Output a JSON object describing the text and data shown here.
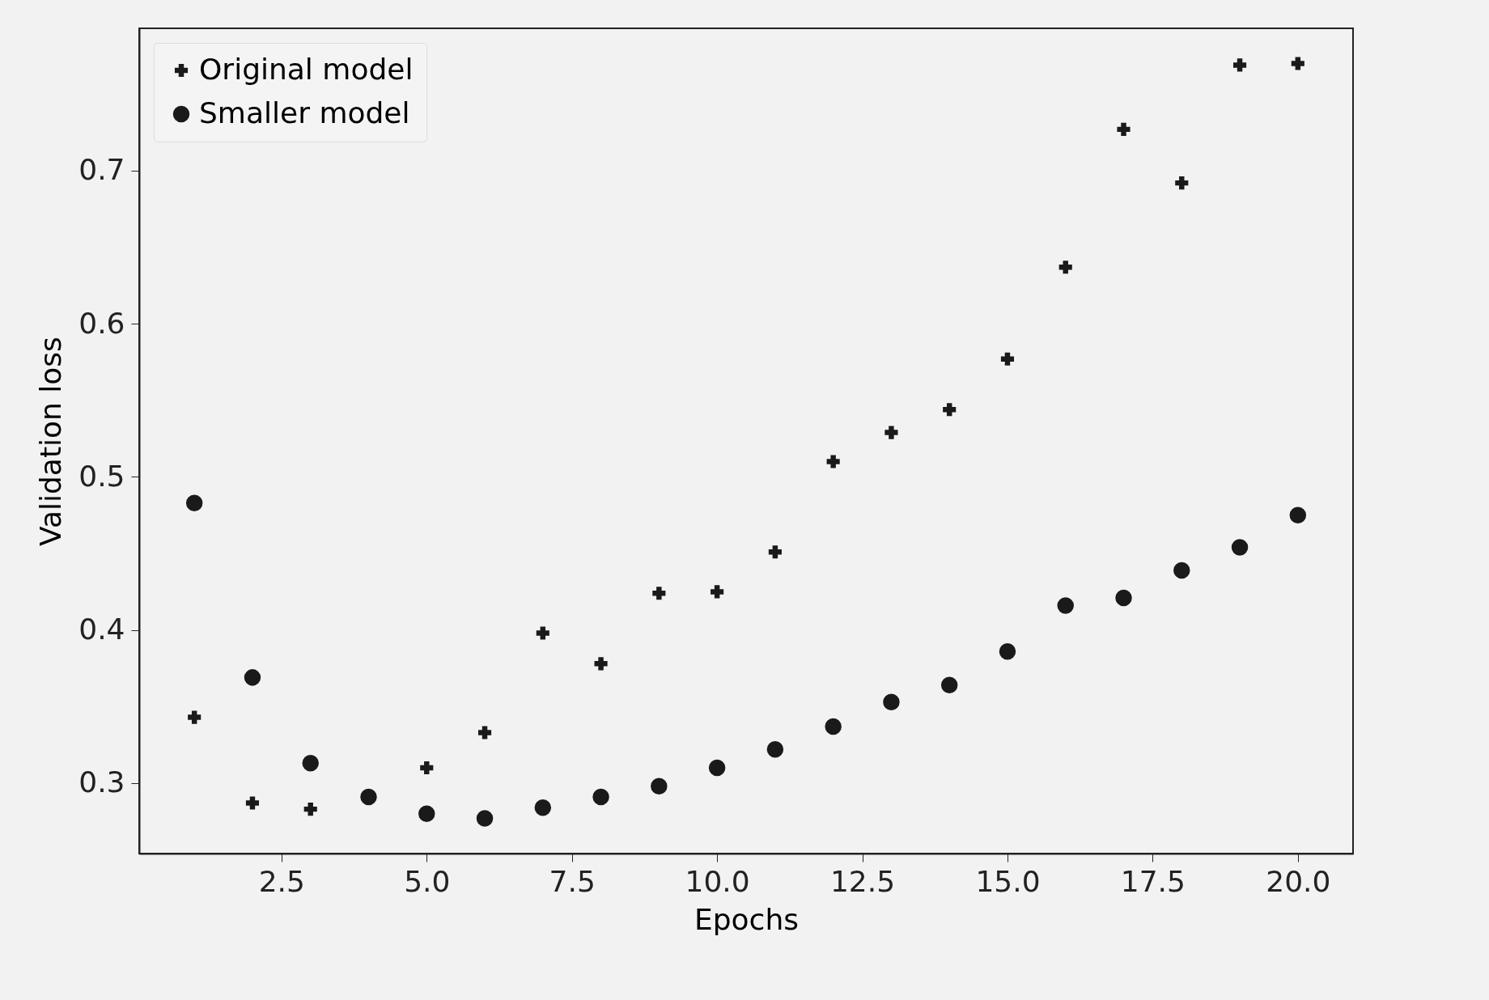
{
  "chart_data": {
    "type": "scatter",
    "xlabel": "Epochs",
    "ylabel": "Validation loss",
    "x": [
      1,
      2,
      3,
      4,
      5,
      6,
      7,
      8,
      9,
      10,
      11,
      12,
      13,
      14,
      15,
      16,
      17,
      18,
      19,
      20
    ],
    "series": [
      {
        "name": "Original model",
        "color": "#1a1a1a",
        "marker": "cross",
        "values": [
          0.343,
          0.287,
          0.283,
          null,
          0.31,
          0.333,
          0.398,
          0.378,
          0.424,
          0.425,
          0.451,
          0.51,
          0.529,
          0.544,
          0.577,
          0.637,
          0.727,
          0.692,
          0.769,
          0.77
        ]
      },
      {
        "name": "Smaller model",
        "color": "#1a1a1a",
        "marker": "circle",
        "values": [
          0.483,
          0.369,
          0.313,
          0.291,
          0.28,
          0.277,
          0.284,
          0.291,
          0.298,
          0.31,
          0.322,
          0.337,
          0.353,
          0.364,
          0.386,
          0.416,
          0.421,
          0.439,
          0.454,
          0.475
        ]
      }
    ],
    "xlim": [
      0.05,
      20.95
    ],
    "ylim": [
      0.254,
      0.793
    ],
    "xticks": [
      2.5,
      {
        "value": 5,
        "label": "5.0"
      },
      7.5,
      {
        "value": 10,
        "label": "10.0"
      },
      12.5,
      {
        "value": 15,
        "label": "15.0"
      },
      17.5,
      {
        "value": 20,
        "label": "20.0"
      }
    ],
    "yticks": [
      0.3,
      0.4,
      0.5,
      0.6,
      0.7
    ],
    "grid": false,
    "legend": "top left"
  }
}
